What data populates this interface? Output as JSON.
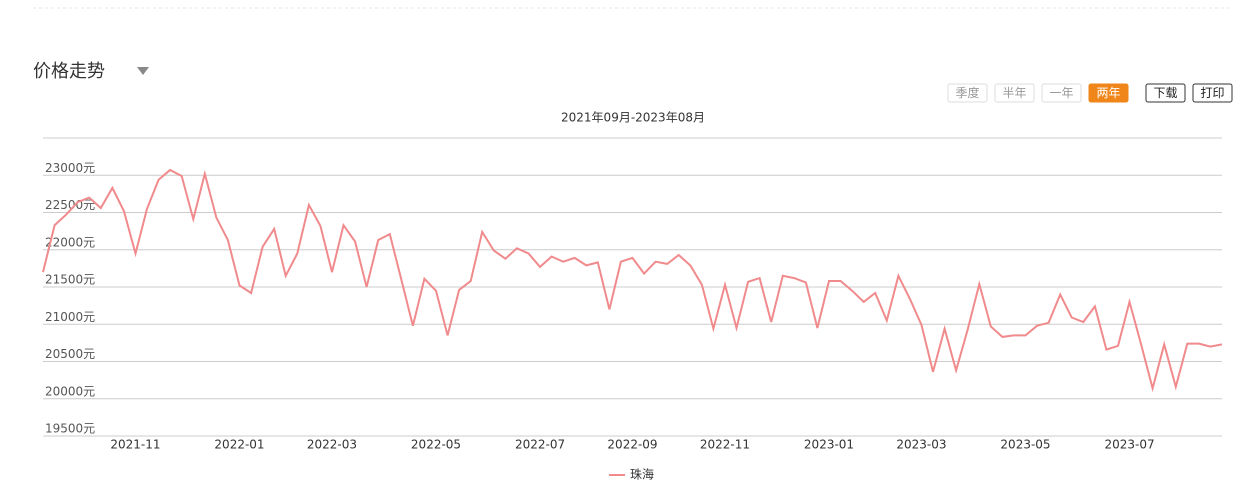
{
  "header": {
    "title": "价格走势"
  },
  "controls": {
    "range_buttons": [
      "季度",
      "半年",
      "一年",
      "两年"
    ],
    "active": 3,
    "actions": [
      "下载",
      "打印"
    ]
  },
  "chart_data": {
    "type": "line",
    "subtitle": "2021年09月-2023年08月",
    "categories": [
      null,
      null,
      null,
      null,
      null,
      null,
      null,
      null,
      "2021-11",
      null,
      null,
      null,
      null,
      null,
      null,
      null,
      null,
      "2022-01",
      null,
      null,
      null,
      null,
      null,
      null,
      null,
      "2022-03",
      null,
      null,
      null,
      null,
      null,
      null,
      null,
      null,
      "2022-05",
      null,
      null,
      null,
      null,
      null,
      null,
      null,
      null,
      "2022-07",
      null,
      null,
      null,
      null,
      null,
      null,
      null,
      "2022-09",
      null,
      null,
      null,
      null,
      null,
      null,
      null,
      "2022-11",
      null,
      null,
      null,
      null,
      null,
      null,
      null,
      null,
      "2023-01",
      null,
      null,
      null,
      null,
      null,
      null,
      null,
      "2023-03",
      null,
      null,
      null,
      null,
      null,
      null,
      null,
      null,
      "2023-05",
      null,
      null,
      null,
      null,
      null,
      null,
      null,
      null,
      "2023-07",
      null,
      null,
      null,
      null,
      null,
      null,
      null,
      null
    ],
    "series": [
      {
        "name": "珠海",
        "color": "#f08a8c",
        "values": [
          21700,
          22330,
          22470,
          22640,
          22700,
          22560,
          22830,
          22520,
          21950,
          22550,
          22940,
          23070,
          22990,
          22410,
          23020,
          22430,
          22130,
          21520,
          21420,
          22040,
          22280,
          21650,
          21950,
          22600,
          22320,
          21700,
          22330,
          22110,
          21500,
          22130,
          22210,
          21600,
          20980,
          21610,
          21450,
          20850,
          21460,
          21580,
          22240,
          21990,
          21880,
          22020,
          21950,
          21770,
          21910,
          21840,
          21890,
          21790,
          21830,
          21200,
          21840,
          21890,
          21680,
          21840,
          21810,
          21930,
          21790,
          21530,
          20940,
          21530,
          20950,
          21570,
          21620,
          21030,
          21650,
          21620,
          21560,
          20950,
          21580,
          21580,
          21450,
          21300,
          21420,
          21050,
          21650,
          21340,
          20990,
          20360,
          20940,
          20380,
          20930,
          21540,
          20970,
          20830,
          20850,
          20850,
          20980,
          21020,
          21400,
          21090,
          21030,
          21240,
          20660,
          20710,
          21300,
          20730,
          20140,
          20730,
          20160,
          20740,
          20740,
          20700,
          20730
        ]
      }
    ],
    "ylim": [
      19500,
      23500
    ],
    "yticks": [
      {
        "value": 19500,
        "label": "19500元"
      },
      {
        "value": 20000,
        "label": "20000元"
      },
      {
        "value": 20500,
        "label": "20500元"
      },
      {
        "value": 21000,
        "label": "21000元"
      },
      {
        "value": 21500,
        "label": "21500元"
      },
      {
        "value": 22000,
        "label": "22000元"
      },
      {
        "value": 22500,
        "label": "22500元"
      },
      {
        "value": 23000,
        "label": "23000元"
      }
    ],
    "grid": true,
    "legend": "bottom"
  }
}
